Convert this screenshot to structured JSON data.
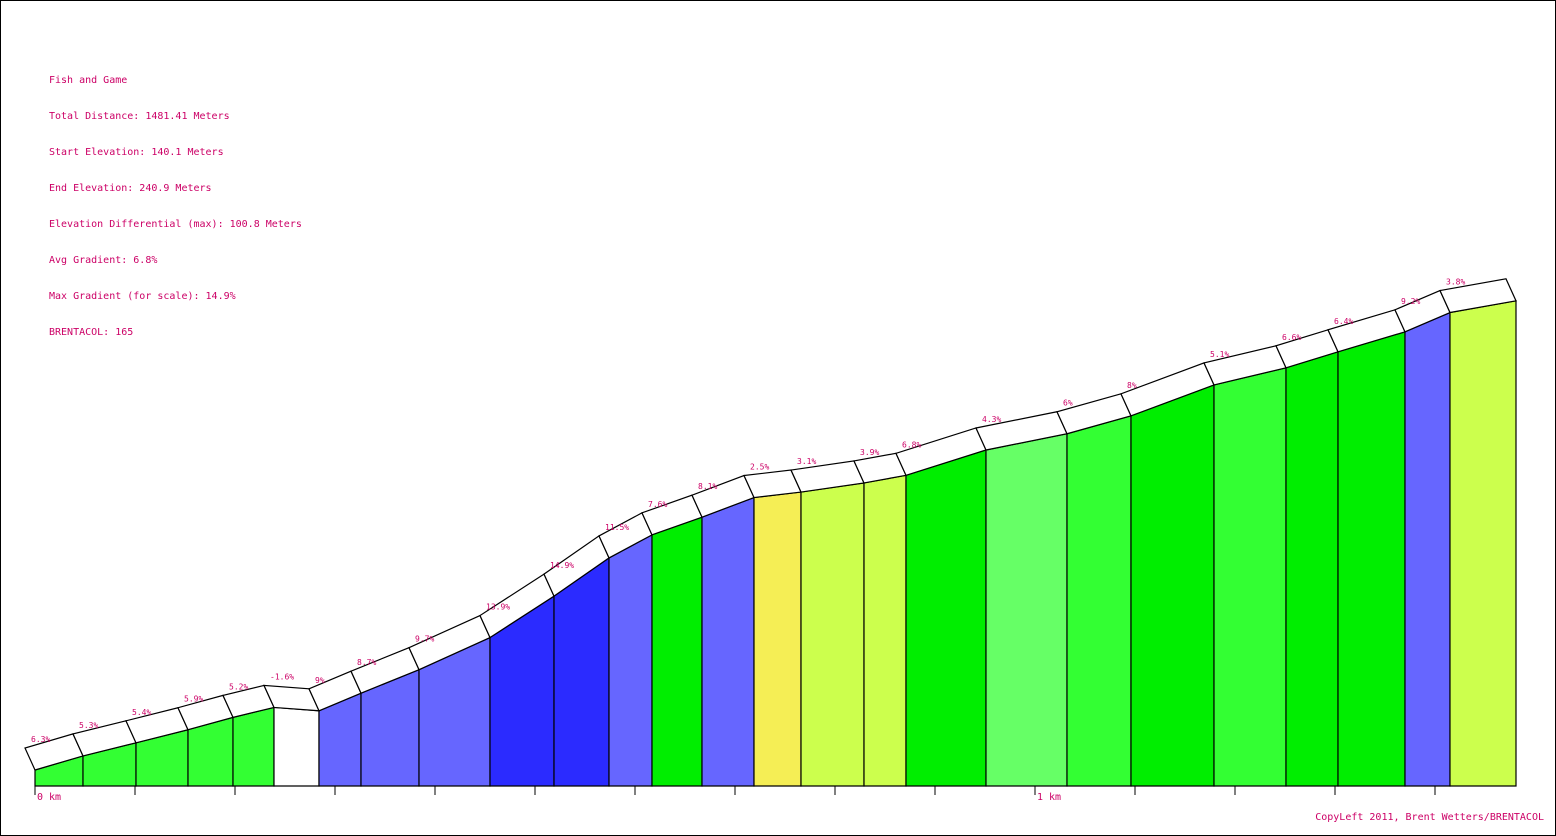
{
  "info": {
    "name": "Fish and Game",
    "total_distance": "Total Distance: 1481.41 Meters",
    "start_elevation": "Start Elevation: 140.1 Meters",
    "end_elevation": "End Elevation: 240.9 Meters",
    "elevation_diff": "Elevation Differential (max): 100.8 Meters",
    "avg_gradient": "Avg Gradient: 6.8%",
    "max_gradient": "Max Gradient (for scale): 14.9%",
    "brentacol": "BRENTACOL: 165"
  },
  "copyleft": "CopyLeft 2011, Brent Wetters/BRENTACOL",
  "colors": {
    "text": "#cc0066",
    "white": "#ffffff",
    "green": "#33ff33",
    "bright_green": "#00ee00",
    "light_green": "#66ff66",
    "lime": "#ccff4d",
    "yellow": "#f5ee55",
    "blue": "#6666ff",
    "dark_blue": "#2b2bff"
  },
  "chart_data": {
    "type": "area",
    "x_unit": "km",
    "start_elevation_m": 140.1,
    "end_elevation_m": 240.9,
    "total_distance_m": 1481.41,
    "x_ticks": [
      {
        "km": 0,
        "label": "0 km"
      },
      {
        "km": 0.1,
        "label": ""
      },
      {
        "km": 0.2,
        "label": ""
      },
      {
        "km": 0.3,
        "label": ""
      },
      {
        "km": 0.4,
        "label": ""
      },
      {
        "km": 0.5,
        "label": ""
      },
      {
        "km": 0.6,
        "label": ""
      },
      {
        "km": 0.7,
        "label": ""
      },
      {
        "km": 0.8,
        "label": ""
      },
      {
        "km": 0.9,
        "label": ""
      },
      {
        "km": 1.0,
        "label": "1 km"
      },
      {
        "km": 1.1,
        "label": ""
      },
      {
        "km": 1.2,
        "label": ""
      },
      {
        "km": 1.3,
        "label": ""
      },
      {
        "km": 1.4,
        "label": ""
      }
    ],
    "segments": [
      {
        "start_km": 0.0,
        "end_km": 0.048,
        "gradient": 6.3,
        "label": "6.3%",
        "color": "green"
      },
      {
        "start_km": 0.048,
        "end_km": 0.101,
        "gradient": 5.3,
        "label": "5.3%",
        "color": "green"
      },
      {
        "start_km": 0.101,
        "end_km": 0.153,
        "gradient": 5.4,
        "label": "5.4%",
        "color": "green"
      },
      {
        "start_km": 0.153,
        "end_km": 0.198,
        "gradient": 5.9,
        "label": "5.9%",
        "color": "green"
      },
      {
        "start_km": 0.198,
        "end_km": 0.239,
        "gradient": 5.2,
        "label": "5.2%",
        "color": "green"
      },
      {
        "start_km": 0.239,
        "end_km": 0.284,
        "gradient": -1.6,
        "label": "-1.6%",
        "color": "white"
      },
      {
        "start_km": 0.284,
        "end_km": 0.326,
        "gradient": 9.0,
        "label": "9%",
        "color": "blue"
      },
      {
        "start_km": 0.326,
        "end_km": 0.384,
        "gradient": 8.7,
        "label": "8.7%",
        "color": "blue"
      },
      {
        "start_km": 0.384,
        "end_km": 0.455,
        "gradient": 9.7,
        "label": "9.7%",
        "color": "blue"
      },
      {
        "start_km": 0.455,
        "end_km": 0.519,
        "gradient": 13.9,
        "label": "13.9%",
        "color": "dark_blue"
      },
      {
        "start_km": 0.519,
        "end_km": 0.574,
        "gradient": 14.9,
        "label": "14.9%",
        "color": "dark_blue"
      },
      {
        "start_km": 0.574,
        "end_km": 0.617,
        "gradient": 11.5,
        "label": "11.5%",
        "color": "blue"
      },
      {
        "start_km": 0.617,
        "end_km": 0.667,
        "gradient": 7.6,
        "label": "7.6%",
        "color": "bright_green"
      },
      {
        "start_km": 0.667,
        "end_km": 0.719,
        "gradient": 8.1,
        "label": "8.1%",
        "color": "blue"
      },
      {
        "start_km": 0.719,
        "end_km": 0.766,
        "gradient": 2.5,
        "label": "2.5%",
        "color": "yellow"
      },
      {
        "start_km": 0.766,
        "end_km": 0.829,
        "gradient": 3.1,
        "label": "3.1%",
        "color": "lime"
      },
      {
        "start_km": 0.829,
        "end_km": 0.871,
        "gradient": 3.9,
        "label": "3.9%",
        "color": "lime"
      },
      {
        "start_km": 0.871,
        "end_km": 0.951,
        "gradient": 6.8,
        "label": "6.8%",
        "color": "bright_green"
      },
      {
        "start_km": 0.951,
        "end_km": 1.032,
        "gradient": 4.3,
        "label": "4.3%",
        "color": "light_green"
      },
      {
        "start_km": 1.032,
        "end_km": 1.096,
        "gradient": 6.0,
        "label": "6%",
        "color": "green"
      },
      {
        "start_km": 1.096,
        "end_km": 1.179,
        "gradient": 8.0,
        "label": "8%",
        "color": "bright_green"
      },
      {
        "start_km": 1.179,
        "end_km": 1.251,
        "gradient": 5.1,
        "label": "5.1%",
        "color": "green"
      },
      {
        "start_km": 1.251,
        "end_km": 1.303,
        "gradient": 6.6,
        "label": "6.6%",
        "color": "bright_green"
      },
      {
        "start_km": 1.303,
        "end_km": 1.37,
        "gradient": 6.4,
        "label": "6.4%",
        "color": "bright_green"
      },
      {
        "start_km": 1.37,
        "end_km": 1.415,
        "gradient": 9.2,
        "label": "9.2%",
        "color": "blue"
      },
      {
        "start_km": 1.415,
        "end_km": 1.481,
        "gradient": 3.8,
        "label": "3.8%",
        "color": "lime"
      }
    ]
  }
}
